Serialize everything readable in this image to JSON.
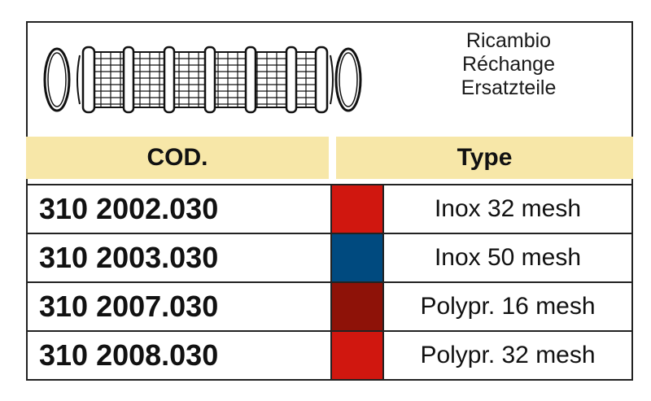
{
  "captions": [
    "Ricambio",
    "Réchange",
    "Ersatzteile"
  ],
  "header": {
    "cod": "COD.",
    "type": "Type"
  },
  "rows": [
    {
      "code": "310 2002.030",
      "type": "Inox 32 mesh",
      "color": "#d0170f"
    },
    {
      "code": "310 2003.030",
      "type": "Inox 50 mesh",
      "color": "#004a7f"
    },
    {
      "code": "310 2007.030",
      "type": "Polypr. 16 mesh",
      "color": "#8e1208"
    },
    {
      "code": "310 2008.030",
      "type": "Polypr. 32 mesh",
      "color": "#d0170f"
    }
  ],
  "icons": {
    "illustration": "filter-cartridge-with-o-rings"
  }
}
